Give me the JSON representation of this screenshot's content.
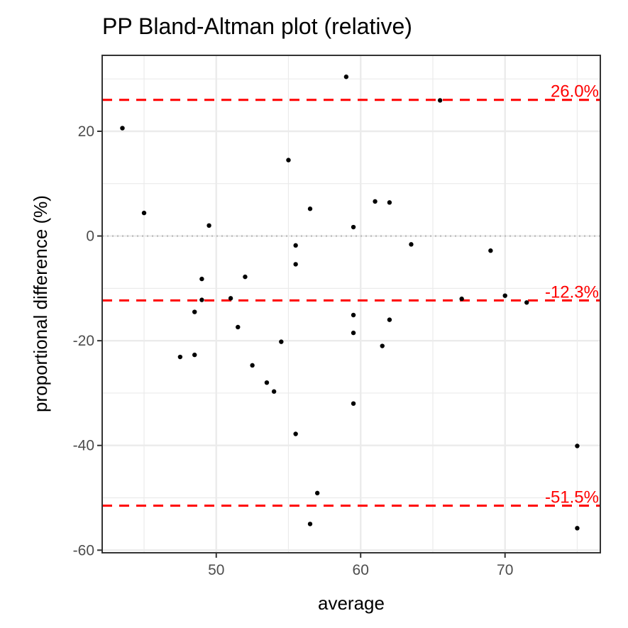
{
  "chart_data": {
    "type": "scatter",
    "title": "PP   Bland-Altman plot (relative)",
    "xlabel": "average",
    "ylabel": "proportional difference (%)",
    "xlim": [
      42.1,
      76.6
    ],
    "ylim": [
      -60.5,
      34.5
    ],
    "x_ticks": [
      50,
      60,
      70
    ],
    "x_tick_labels": [
      "50",
      "60",
      "70"
    ],
    "x_minor_ticks": [
      45,
      55,
      65,
      75
    ],
    "y_ticks": [
      -60,
      -40,
      -20,
      0,
      20
    ],
    "y_tick_labels": [
      "-60",
      "-40",
      "-20",
      "0",
      "20"
    ],
    "y_minor_ticks": [
      -50,
      -30,
      -10,
      10,
      30
    ],
    "grid": true,
    "zero_line": 0,
    "reference_lines": [
      {
        "value": 26.0,
        "label": "26.0%",
        "color": "#ff0000"
      },
      {
        "value": -12.3,
        "label": "-12.3%",
        "color": "#ff0000"
      },
      {
        "value": -51.5,
        "label": "-51.5%",
        "color": "#ff0000"
      }
    ],
    "points": [
      {
        "x": 43.5,
        "y": 20.6
      },
      {
        "x": 45.0,
        "y": 4.4
      },
      {
        "x": 47.5,
        "y": -23.1
      },
      {
        "x": 48.5,
        "y": -22.7
      },
      {
        "x": 48.5,
        "y": -14.5
      },
      {
        "x": 49.0,
        "y": -8.2
      },
      {
        "x": 49.0,
        "y": -12.2
      },
      {
        "x": 49.5,
        "y": 2.0
      },
      {
        "x": 51.0,
        "y": -11.9
      },
      {
        "x": 51.5,
        "y": -17.4
      },
      {
        "x": 52.0,
        "y": -7.8
      },
      {
        "x": 52.5,
        "y": -24.7
      },
      {
        "x": 53.5,
        "y": -28.0
      },
      {
        "x": 54.0,
        "y": -29.7
      },
      {
        "x": 54.5,
        "y": -20.2
      },
      {
        "x": 55.0,
        "y": 14.5
      },
      {
        "x": 55.5,
        "y": -1.8
      },
      {
        "x": 55.5,
        "y": -5.4
      },
      {
        "x": 55.5,
        "y": -37.8
      },
      {
        "x": 56.5,
        "y": 5.2
      },
      {
        "x": 56.5,
        "y": -55.0
      },
      {
        "x": 57.0,
        "y": -49.1
      },
      {
        "x": 59.0,
        "y": 30.4
      },
      {
        "x": 59.5,
        "y": 1.7
      },
      {
        "x": 59.5,
        "y": -15.1
      },
      {
        "x": 59.5,
        "y": -18.5
      },
      {
        "x": 59.5,
        "y": -32.0
      },
      {
        "x": 61.0,
        "y": 6.6
      },
      {
        "x": 61.5,
        "y": -21.0
      },
      {
        "x": 62.0,
        "y": 6.4
      },
      {
        "x": 62.0,
        "y": -16.0
      },
      {
        "x": 63.5,
        "y": -1.6
      },
      {
        "x": 65.5,
        "y": 25.9
      },
      {
        "x": 67.0,
        "y": -12.0
      },
      {
        "x": 69.0,
        "y": -2.8
      },
      {
        "x": 70.0,
        "y": -11.4
      },
      {
        "x": 71.5,
        "y": -12.7
      },
      {
        "x": 75.0,
        "y": -40.1
      },
      {
        "x": 75.0,
        "y": -55.8
      }
    ],
    "point_color": "#000000",
    "reference_line_color": "#ff0000",
    "zero_line_color": "#bfbfbf",
    "grid_color": "#ebebeb"
  }
}
